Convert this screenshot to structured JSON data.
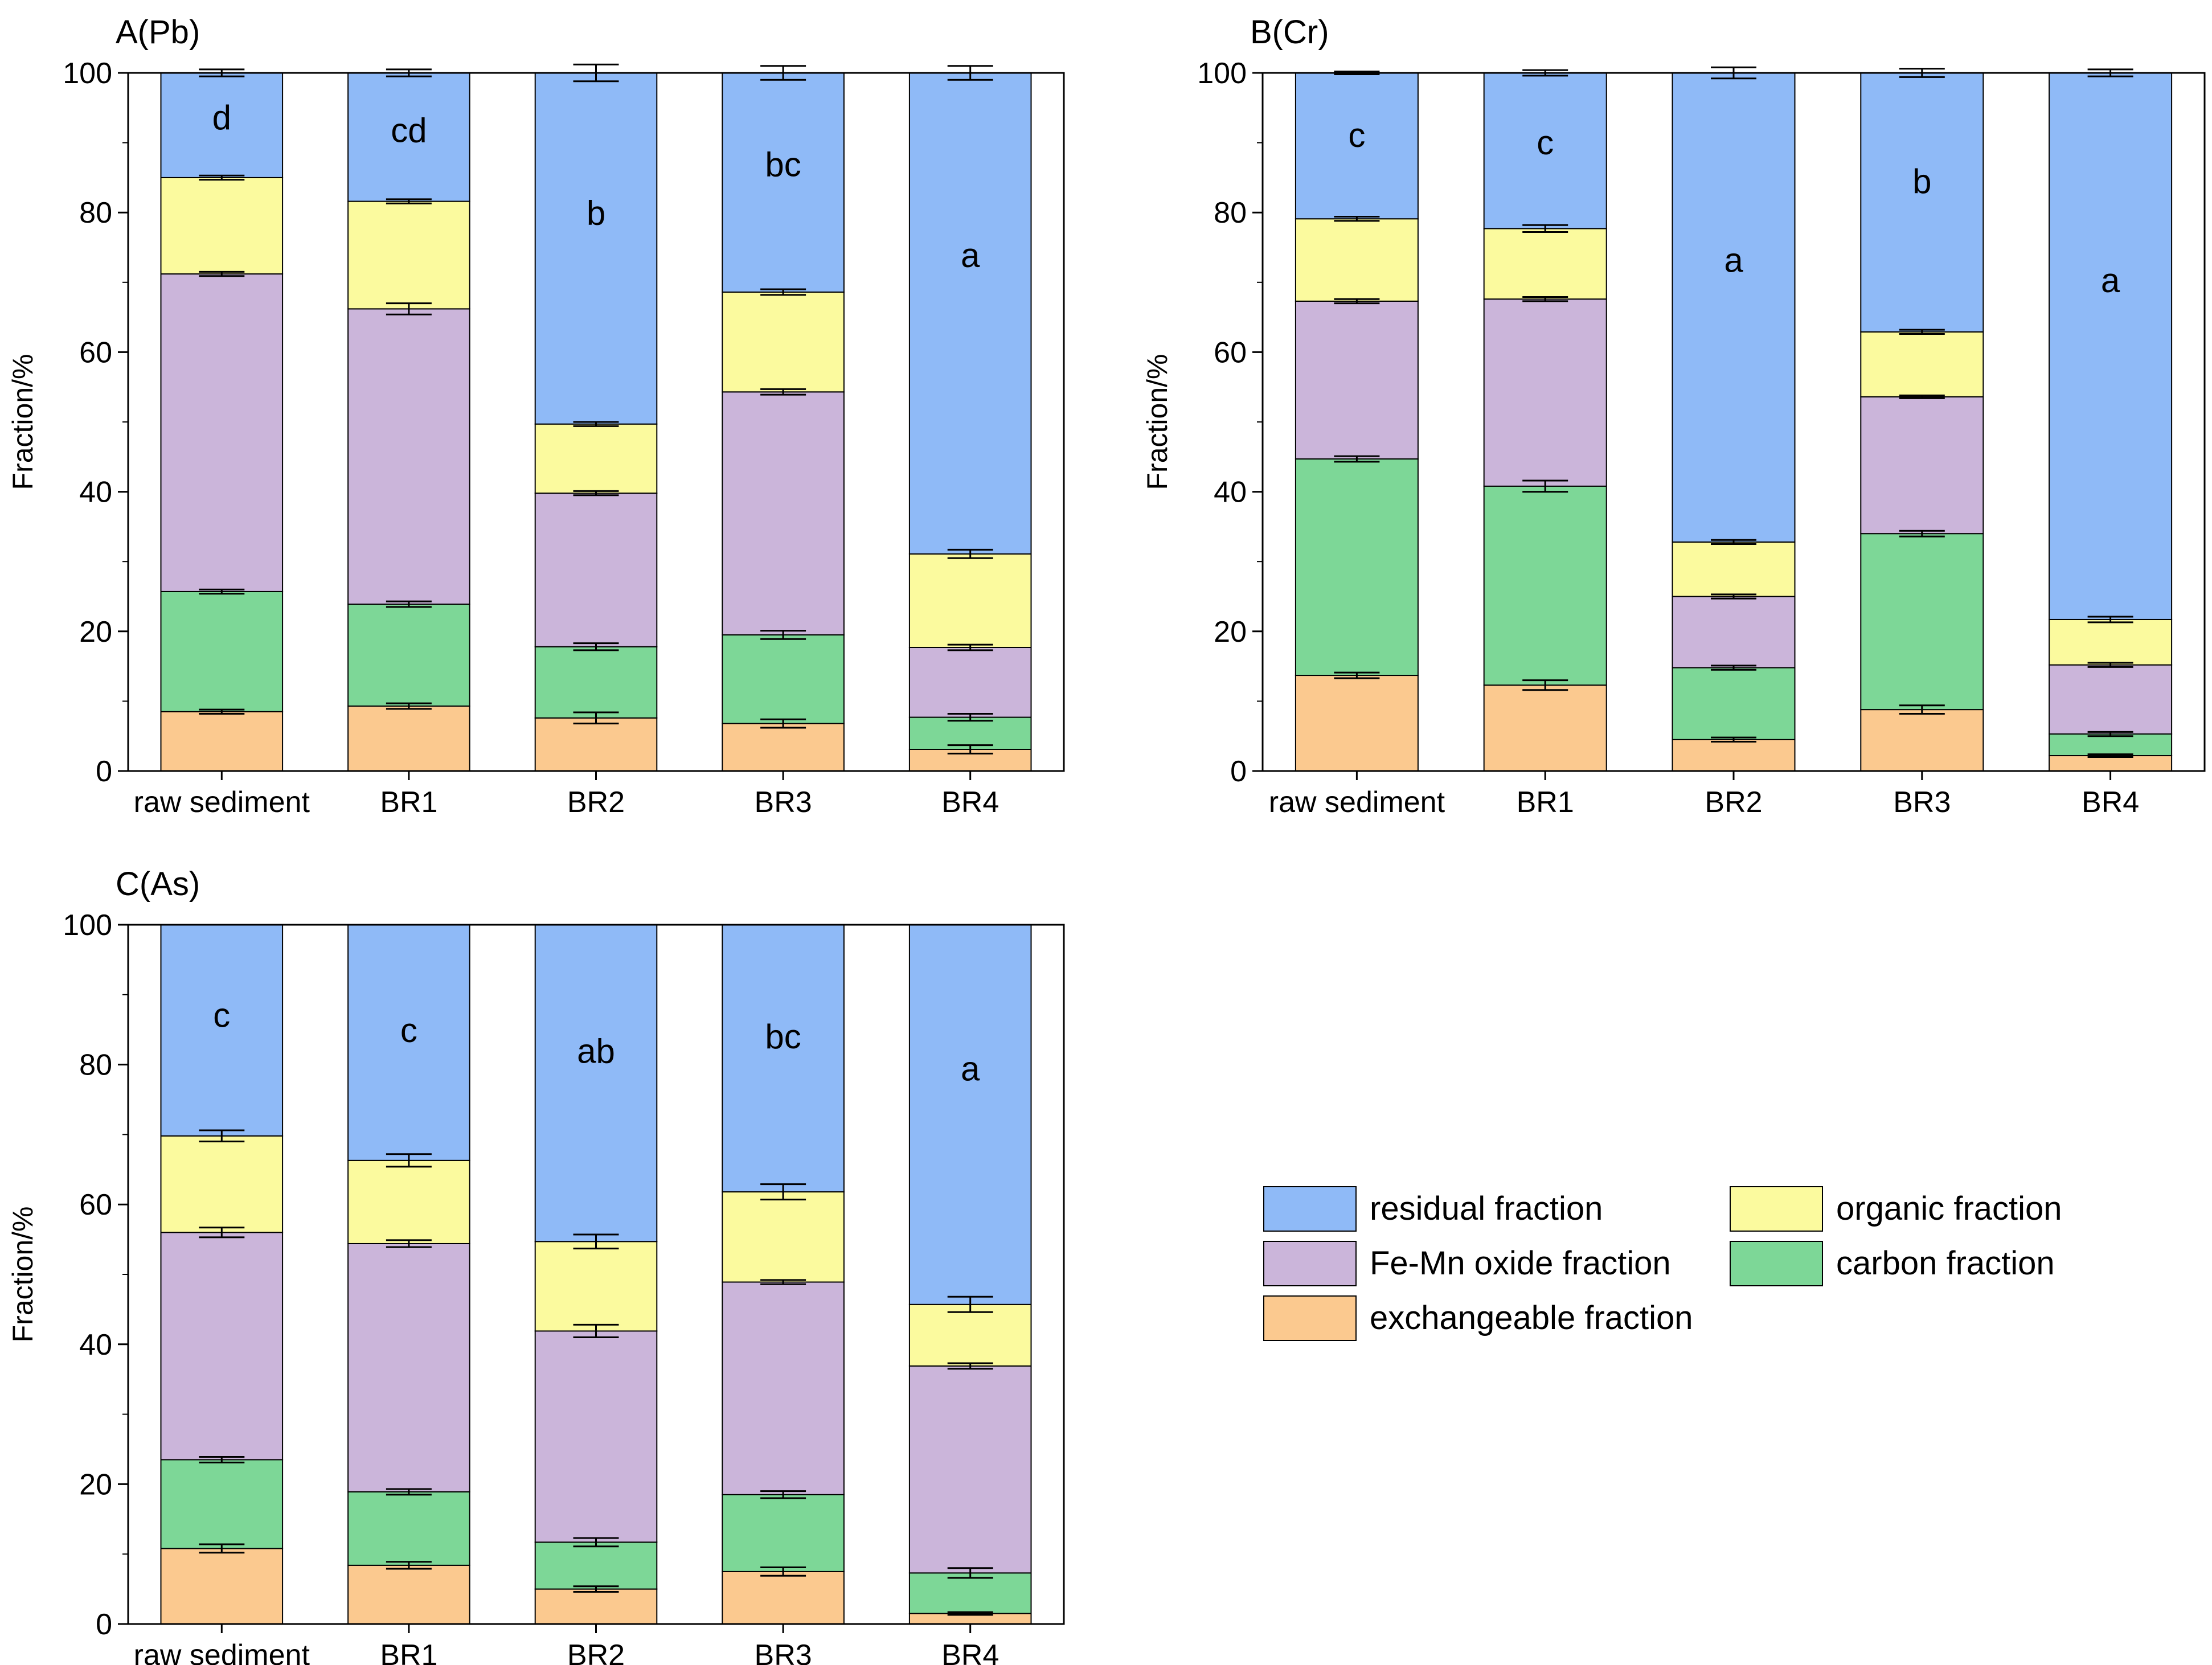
{
  "legend": [
    {
      "key": "residual",
      "label": "residual fraction"
    },
    {
      "key": "organic",
      "label": "organic fraction"
    },
    {
      "key": "femn",
      "label": "Fe-Mn oxide fraction"
    },
    {
      "key": "carbon",
      "label": "carbon fraction"
    },
    {
      "key": "exchangeable",
      "label": "exchangeable fraction"
    }
  ],
  "colors": {
    "residual": "#8fbaf7",
    "organic": "#fbfa9e",
    "femn": "#cbb5da",
    "carbon": "#7dd797",
    "exchangeable": "#fbc98f"
  },
  "chart_data": [
    {
      "type": "bar",
      "stacked": true,
      "title": "A(Pb)",
      "ylabel": "Fraction/%",
      "ylim": [
        0,
        100
      ],
      "yticks": [
        0,
        20,
        40,
        60,
        80,
        100
      ],
      "categories": [
        "raw sediment",
        "BR1",
        "BR2",
        "BR3",
        "BR4"
      ],
      "series": [
        {
          "key": "exchangeable",
          "values": [
            8.5,
            9.3,
            7.6,
            6.8,
            3.1
          ]
        },
        {
          "key": "carbon",
          "values": [
            17.2,
            14.6,
            10.2,
            12.7,
            4.6
          ]
        },
        {
          "key": "femn",
          "values": [
            45.5,
            42.3,
            22.0,
            34.8,
            10.0
          ]
        },
        {
          "key": "organic",
          "values": [
            13.8,
            15.4,
            9.9,
            14.3,
            13.4
          ]
        },
        {
          "key": "residual",
          "values": [
            15.0,
            18.4,
            50.3,
            31.4,
            68.9
          ]
        }
      ],
      "boundary_errors": [
        [
          0.3,
          0.4,
          0.5,
          0.6,
          0.3
        ],
        [
          0.3,
          0.4,
          0.8,
          0.6,
          0.6
        ],
        [
          0.3,
          0.4,
          0.5,
          0.6,
          0.5
        ],
        [
          0.3,
          0.8,
          0.3,
          0.4,
          0.4
        ],
        [
          0.3,
          0.3,
          0.3,
          0.4,
          0.6
        ],
        [
          0.5,
          0.5,
          1.2,
          1.0,
          1.0
        ]
      ],
      "letters": [
        "d",
        "cd",
        "b",
        "bc",
        "a"
      ]
    },
    {
      "type": "bar",
      "stacked": true,
      "title": "B(Cr)",
      "ylabel": "Fraction/%",
      "ylim": [
        0,
        100
      ],
      "yticks": [
        0,
        20,
        40,
        60,
        80,
        100
      ],
      "categories": [
        "raw sediment",
        "BR1",
        "BR2",
        "BR3",
        "BR4"
      ],
      "series": [
        {
          "key": "exchangeable",
          "values": [
            13.7,
            12.3,
            4.5,
            8.8,
            2.2
          ]
        },
        {
          "key": "carbon",
          "values": [
            31.0,
            28.5,
            10.3,
            25.2,
            3.1
          ]
        },
        {
          "key": "femn",
          "values": [
            22.6,
            26.8,
            10.2,
            19.6,
            9.9
          ]
        },
        {
          "key": "organic",
          "values": [
            11.8,
            10.1,
            7.8,
            9.3,
            6.5
          ]
        },
        {
          "key": "residual",
          "values": [
            20.9,
            22.3,
            67.2,
            37.1,
            78.3
          ]
        }
      ],
      "boundary_errors": [
        [
          0.3,
          0.3,
          0.2,
          0.2,
          0.2
        ],
        [
          0.4,
          0.7,
          0.3,
          0.6,
          0.2
        ],
        [
          0.4,
          0.8,
          0.3,
          0.4,
          0.3
        ],
        [
          0.3,
          0.3,
          0.3,
          0.2,
          0.3
        ],
        [
          0.3,
          0.5,
          0.3,
          0.3,
          0.4
        ],
        [
          0.2,
          0.4,
          0.8,
          0.6,
          0.5
        ]
      ],
      "letters": [
        "c",
        "c",
        "a",
        "b",
        "a"
      ]
    },
    {
      "type": "bar",
      "stacked": true,
      "title": "C(As)",
      "ylabel": "Fraction/%",
      "ylim": [
        0,
        100
      ],
      "yticks": [
        0,
        20,
        40,
        60,
        80,
        100
      ],
      "categories": [
        "raw sediment",
        "BR1",
        "BR2",
        "BR3",
        "BR4"
      ],
      "series": [
        {
          "key": "exchangeable",
          "values": [
            10.8,
            8.4,
            5.0,
            7.5,
            1.5
          ]
        },
        {
          "key": "carbon",
          "values": [
            12.7,
            10.5,
            6.7,
            11.0,
            5.8
          ]
        },
        {
          "key": "femn",
          "values": [
            32.5,
            35.5,
            30.2,
            30.4,
            29.6
          ]
        },
        {
          "key": "organic",
          "values": [
            13.8,
            11.9,
            12.8,
            12.9,
            8.8
          ]
        },
        {
          "key": "residual",
          "values": [
            30.2,
            33.7,
            45.3,
            38.2,
            54.3
          ]
        }
      ],
      "boundary_errors": [
        [
          0.4,
          0.3,
          0.5,
          0.3,
          0.4
        ],
        [
          0.6,
          0.5,
          0.4,
          0.6,
          0.2
        ],
        [
          0.4,
          0.4,
          0.6,
          0.5,
          0.7
        ],
        [
          0.7,
          0.5,
          0.9,
          0.3,
          0.4
        ],
        [
          0.8,
          0.9,
          1.0,
          1.1,
          1.1
        ]
      ],
      "letters": [
        "c",
        "c",
        "ab",
        "bc",
        "a"
      ]
    }
  ]
}
